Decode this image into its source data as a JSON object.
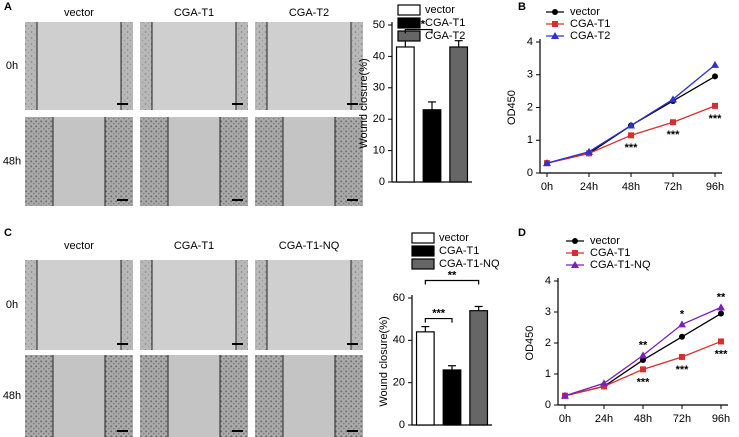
{
  "panel_letters": [
    "A",
    "B",
    "C",
    "D"
  ],
  "image_grids": [
    {
      "columns": [
        "vector",
        "CGA-T1",
        "CGA-T2"
      ],
      "rows": [
        "0h",
        "48h"
      ]
    },
    {
      "columns": [
        "vector",
        "CGA-T1",
        "CGA-T1-NQ"
      ],
      "rows": [
        "0h",
        "48h"
      ]
    }
  ],
  "chart_data": [
    {
      "type": "bar",
      "ylabel": "Wound closure(%)",
      "categories": [
        "vector",
        "CGA-T1",
        "CGA-T2"
      ],
      "values": [
        43,
        23,
        43
      ],
      "errors": [
        3,
        2.5,
        2
      ],
      "colors": [
        "#ffffff",
        "#000000",
        "#666666"
      ],
      "ylim": [
        0,
        50
      ],
      "yticks": [
        0,
        10,
        20,
        30,
        40,
        50
      ],
      "legend": true,
      "annotations": [
        {
          "text": "***",
          "from": "vector",
          "to": "CGA-T1"
        }
      ]
    },
    {
      "type": "line",
      "ylabel": "OD450",
      "categories": [
        "0h",
        "24h",
        "48h",
        "72h",
        "96h"
      ],
      "series": [
        {
          "name": "vector",
          "color": "#000000",
          "marker": "circle",
          "values": [
            0.3,
            0.6,
            1.45,
            2.2,
            2.95
          ]
        },
        {
          "name": "CGA-T1",
          "color": "#d62f2f",
          "marker": "square",
          "values": [
            0.3,
            0.6,
            1.15,
            1.55,
            2.05
          ]
        },
        {
          "name": "CGA-T2",
          "color": "#3030d0",
          "marker": "triangle",
          "values": [
            0.3,
            0.65,
            1.45,
            2.25,
            3.3
          ]
        }
      ],
      "ylim": [
        0,
        4
      ],
      "yticks": [
        0,
        1,
        2,
        3,
        4
      ],
      "legend": true,
      "annotations": [
        {
          "text": "***",
          "category": "48h",
          "position": "below"
        },
        {
          "text": "***",
          "category": "72h",
          "position": "below"
        },
        {
          "text": "***",
          "category": "96h",
          "position": "below"
        }
      ]
    },
    {
      "type": "bar",
      "ylabel": "Wound closure(%)",
      "categories": [
        "vector",
        "CGA-T1",
        "CGA-T1-NQ"
      ],
      "values": [
        44,
        26,
        54
      ],
      "errors": [
        2.5,
        2,
        2
      ],
      "colors": [
        "#ffffff",
        "#000000",
        "#666666"
      ],
      "ylim": [
        0,
        60
      ],
      "yticks": [
        0,
        20,
        40,
        60
      ],
      "legend": true,
      "annotations": [
        {
          "text": "***",
          "from": "vector",
          "to": "CGA-T1"
        },
        {
          "text": "**",
          "from": "vector",
          "to": "CGA-T1-NQ"
        }
      ]
    },
    {
      "type": "line",
      "ylabel": "OD450",
      "categories": [
        "0h",
        "24h",
        "48h",
        "72h",
        "96h"
      ],
      "series": [
        {
          "name": "vector",
          "color": "#000000",
          "marker": "circle",
          "values": [
            0.3,
            0.6,
            1.45,
            2.2,
            2.95
          ]
        },
        {
          "name": "CGA-T1",
          "color": "#d62f2f",
          "marker": "square",
          "values": [
            0.3,
            0.6,
            1.15,
            1.55,
            2.05
          ]
        },
        {
          "name": "CGA-T1-NQ",
          "color": "#7a1fc0",
          "marker": "triangle",
          "values": [
            0.3,
            0.7,
            1.6,
            2.6,
            3.15
          ]
        }
      ],
      "ylim": [
        0,
        4
      ],
      "yticks": [
        0,
        1,
        2,
        3,
        4
      ],
      "legend": true,
      "annotations": [
        {
          "text": "**",
          "category": "48h",
          "position": "above"
        },
        {
          "text": "*",
          "category": "72h",
          "position": "above"
        },
        {
          "text": "**",
          "category": "96h",
          "position": "above"
        },
        {
          "text": "***",
          "category": "48h",
          "position": "below"
        },
        {
          "text": "***",
          "category": "72h",
          "position": "below"
        },
        {
          "text": "***",
          "category": "96h",
          "position": "below"
        }
      ]
    }
  ]
}
